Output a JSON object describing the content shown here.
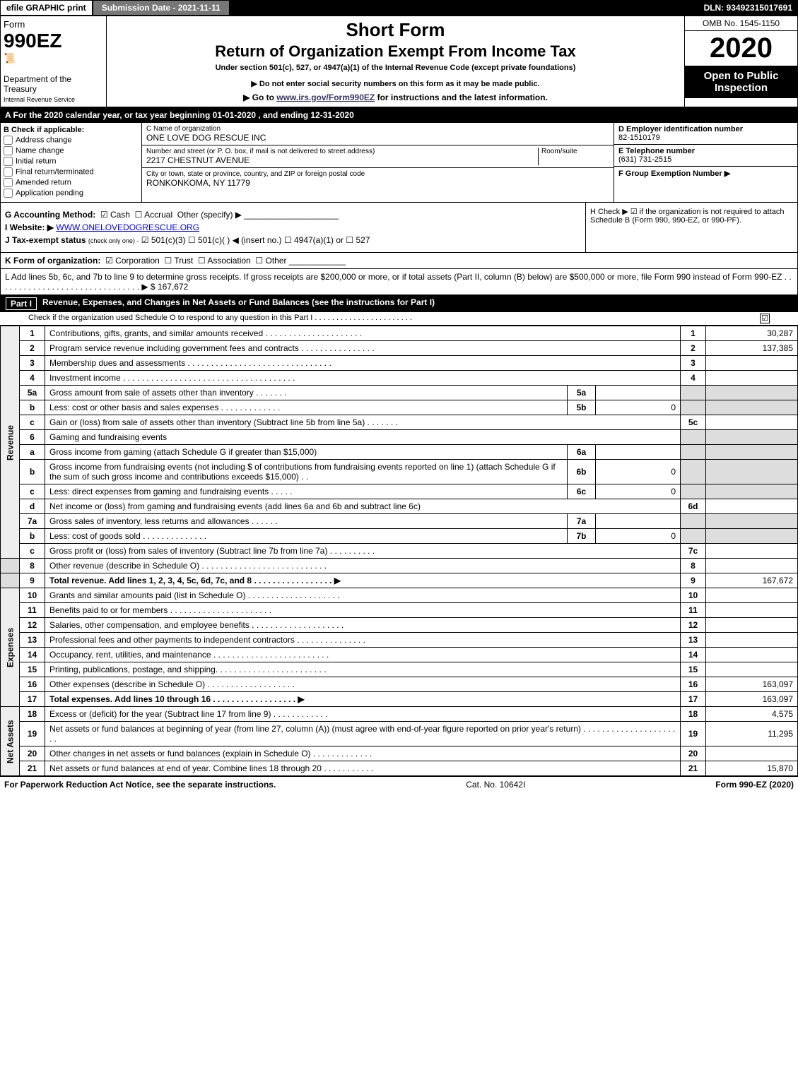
{
  "top": {
    "efile": "efile GRAPHIC print",
    "submission": "Submission Date - 2021-11-11",
    "dln": "DLN: 93492315017691"
  },
  "header": {
    "form_label": "Form",
    "form_number": "990EZ",
    "dept": "Department of the Treasury",
    "irs": "Internal Revenue Service",
    "title1": "Short Form",
    "title2": "Return of Organization Exempt From Income Tax",
    "subtitle": "Under section 501(c), 527, or 4947(a)(1) of the Internal Revenue Code (except private foundations)",
    "notice": "▶ Do not enter social security numbers on this form as it may be made public.",
    "link_pre": "▶ Go to ",
    "link_url": "www.irs.gov/Form990EZ",
    "link_post": " for instructions and the latest information.",
    "omb": "OMB No. 1545-1150",
    "year": "2020",
    "open": "Open to Public Inspection"
  },
  "period": "A For the 2020 calendar year, or tax year beginning 01-01-2020 , and ending 12-31-2020",
  "sectionB": {
    "label": "B Check if applicable:",
    "opts": [
      "Address change",
      "Name change",
      "Initial return",
      "Final return/terminated",
      "Amended return",
      "Application pending"
    ]
  },
  "sectionC": {
    "name_lbl": "C Name of organization",
    "name_val": "ONE LOVE DOG RESCUE INC",
    "street_lbl": "Number and street (or P. O. box, if mail is not delivered to street address)",
    "street_val": "2217 CHESTNUT AVENUE",
    "room_lbl": "Room/suite",
    "city_lbl": "City or town, state or province, country, and ZIP or foreign postal code",
    "city_val": "RONKONKOMA, NY  11779"
  },
  "sectionD": {
    "ein_lbl": "D Employer identification number",
    "ein_val": "82-1510179",
    "phone_lbl": "E Telephone number",
    "phone_val": "(631) 731-2515",
    "group_lbl": "F Group Exemption Number  ▶"
  },
  "ghi": {
    "g_label": "G Accounting Method:",
    "g_cash": "Cash",
    "g_accrual": "Accrual",
    "g_other": "Other (specify) ▶",
    "i_label": "I Website: ▶",
    "i_val": "WWW.ONELOVEDOGRESCUE.ORG",
    "j_label": "J Tax-exempt status",
    "j_note": "(check only one) -",
    "j_501c3": "501(c)(3)",
    "j_501c": "501(c)(  ) ◀ (insert no.)",
    "j_4947": "4947(a)(1) or",
    "j_527": "527",
    "h_label": "H  Check ▶ ☑ if the organization is not required to attach Schedule B (Form 990, 990-EZ, or 990-PF)."
  },
  "k": {
    "label": "K Form of organization:",
    "corp": "Corporation",
    "trust": "Trust",
    "assoc": "Association",
    "other": "Other"
  },
  "l": {
    "text": "L Add lines 5b, 6c, and 7b to line 9 to determine gross receipts. If gross receipts are $200,000 or more, or if total assets (Part II, column (B) below) are $500,000 or more, file Form 990 instead of Form 990-EZ . . . . . . . . . . . . . . . . . . . . . . . . . . . . . . . ▶ $ 167,672"
  },
  "part1": {
    "num": "Part I",
    "title": "Revenue, Expenses, and Changes in Net Assets or Fund Balances (see the instructions for Part I)",
    "sub": "Check if the organization used Schedule O to respond to any question in this Part I . . . . . . . . . . . . . . . . . . . . . . .",
    "check": "☑"
  },
  "lines": {
    "l1": {
      "n": "1",
      "d": "Contributions, gifts, grants, and similar amounts received . . . . . . . . . . . . . . . . . . . . .",
      "c": "1",
      "v": "30,287"
    },
    "l2": {
      "n": "2",
      "d": "Program service revenue including government fees and contracts . . . . . . . . . . . . . . . .",
      "c": "2",
      "v": "137,385"
    },
    "l3": {
      "n": "3",
      "d": "Membership dues and assessments . . . . . . . . . . . . . . . . . . . . . . . . . . . . . . .",
      "c": "3",
      "v": ""
    },
    "l4": {
      "n": "4",
      "d": "Investment income . . . . . . . . . . . . . . . . . . . . . . . . . . . . . . . . . . . . .",
      "c": "4",
      "v": ""
    },
    "l5a": {
      "n": "5a",
      "d": "Gross amount from sale of assets other than inventory . . . . . . .",
      "s": "5a",
      "sv": ""
    },
    "l5b": {
      "n": "b",
      "d": "Less: cost or other basis and sales expenses . . . . . . . . . . . . .",
      "s": "5b",
      "sv": "0"
    },
    "l5c": {
      "n": "c",
      "d": "Gain or (loss) from sale of assets other than inventory (Subtract line 5b from line 5a) . . . . . . .",
      "c": "5c",
      "v": ""
    },
    "l6": {
      "n": "6",
      "d": "Gaming and fundraising events"
    },
    "l6a": {
      "n": "a",
      "d": "Gross income from gaming (attach Schedule G if greater than $15,000)",
      "s": "6a",
      "sv": ""
    },
    "l6b": {
      "n": "b",
      "d": "Gross income from fundraising events (not including $                      of contributions from fundraising events reported on line 1) (attach Schedule G if the sum of such gross income and contributions exceeds $15,000)    .  .",
      "s": "6b",
      "sv": "0"
    },
    "l6c": {
      "n": "c",
      "d": "Less: direct expenses from gaming and fundraising events   .  .  .  .  .",
      "s": "6c",
      "sv": "0"
    },
    "l6d": {
      "n": "d",
      "d": "Net income or (loss) from gaming and fundraising events (add lines 6a and 6b and subtract line 6c)",
      "c": "6d",
      "v": ""
    },
    "l7a": {
      "n": "7a",
      "d": "Gross sales of inventory, less returns and allowances . . . . . .",
      "s": "7a",
      "sv": ""
    },
    "l7b": {
      "n": "b",
      "d": "Less: cost of goods sold      .  .  .  .  .  .  .  .  .  .  .  .  .  .",
      "s": "7b",
      "sv": "0"
    },
    "l7c": {
      "n": "c",
      "d": "Gross profit or (loss) from sales of inventory (Subtract line 7b from line 7a) . . . . . . . . . .",
      "c": "7c",
      "v": ""
    },
    "l8": {
      "n": "8",
      "d": "Other revenue (describe in Schedule O) . . . . . . . . . . . . . . . . . . . . . . . . . . .",
      "c": "8",
      "v": ""
    },
    "l9": {
      "n": "9",
      "d": "Total revenue. Add lines 1, 2, 3, 4, 5c, 6d, 7c, and 8  .  .  .  .  .  .  .  .  .  .  .  .  .  .  .  .  .   ▶",
      "c": "9",
      "v": "167,672"
    },
    "l10": {
      "n": "10",
      "d": "Grants and similar amounts paid (list in Schedule O) . . . . . . . . . . . . . . . . . . . .",
      "c": "10",
      "v": ""
    },
    "l11": {
      "n": "11",
      "d": "Benefits paid to or for members      .  .  .  .  .  .  .  .  .  .  .  .  .  .  .  .  .  .  .  .  .  .",
      "c": "11",
      "v": ""
    },
    "l12": {
      "n": "12",
      "d": "Salaries, other compensation, and employee benefits . . . . . . . . . . . . . . . . . . . .",
      "c": "12",
      "v": ""
    },
    "l13": {
      "n": "13",
      "d": "Professional fees and other payments to independent contractors . . . . . . . . . . . . . . .",
      "c": "13",
      "v": ""
    },
    "l14": {
      "n": "14",
      "d": "Occupancy, rent, utilities, and maintenance . . . . . . . . . . . . . . . . . . . . . . . . .",
      "c": "14",
      "v": ""
    },
    "l15": {
      "n": "15",
      "d": "Printing, publications, postage, and shipping. . . . . . . . . . . . . . . . . . . . . . . .",
      "c": "15",
      "v": ""
    },
    "l16": {
      "n": "16",
      "d": "Other expenses (describe in Schedule O)     .  .  .  .  .  .  .  .  .  .  .  .  .  .  .  .  .  .  .",
      "c": "16",
      "v": "163,097"
    },
    "l17": {
      "n": "17",
      "d": "Total expenses. Add lines 10 through 16      .  .  .  .  .  .  .  .  .  .  .  .  .  .  .  .  .  .   ▶",
      "c": "17",
      "v": "163,097"
    },
    "l18": {
      "n": "18",
      "d": "Excess or (deficit) for the year (Subtract line 17 from line 9)      .  .  .  .  .  .  .  .  .  .  .  .",
      "c": "18",
      "v": "4,575"
    },
    "l19": {
      "n": "19",
      "d": "Net assets or fund balances at beginning of year (from line 27, column (A)) (must agree with end-of-year figure reported on prior year's return) . . . . . . . . . . . . . . . . . . . . . .",
      "c": "19",
      "v": "11,295"
    },
    "l20": {
      "n": "20",
      "d": "Other changes in net assets or fund balances (explain in Schedule O) . . . . . . . . . . . . .",
      "c": "20",
      "v": ""
    },
    "l21": {
      "n": "21",
      "d": "Net assets or fund balances at end of year. Combine lines 18 through 20 . . . . . . . . . . .",
      "c": "21",
      "v": "15,870"
    }
  },
  "section_labels": {
    "revenue": "Revenue",
    "expenses": "Expenses",
    "netassets": "Net Assets"
  },
  "footer": {
    "left": "For Paperwork Reduction Act Notice, see the separate instructions.",
    "mid": "Cat. No. 10642I",
    "right": "Form 990-EZ (2020)"
  }
}
